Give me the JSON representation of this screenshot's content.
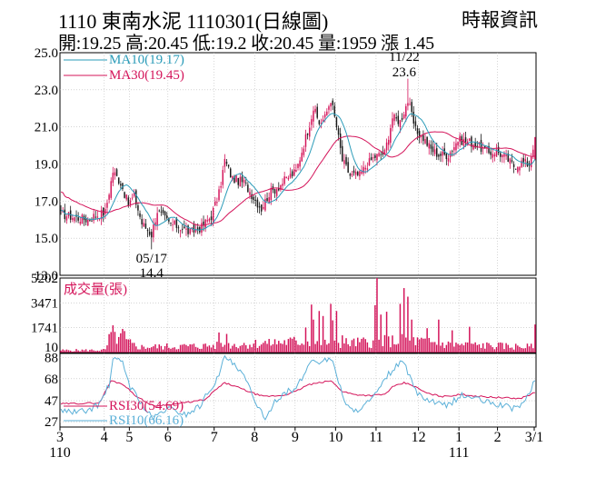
{
  "header": {
    "title": "1110  東南水泥 1110301(日線圖)",
    "source": "時報資訊",
    "quote": "開:19.25 高:20.45 低:19.2 收:20.45 量:1959 漲 1.45"
  },
  "colors": {
    "up": "#d4145a",
    "down": "#1a1a1a",
    "ma10": "#2a9bb8",
    "ma30": "#d4145a",
    "volume": "#d4145a",
    "rsi30": "#d4145a",
    "rsi10": "#5bb0d8",
    "grid": "#bbbbbb"
  },
  "chart_data": [
    {
      "type": "candlestick",
      "panel": "price",
      "ylim": [
        13.0,
        25.0
      ],
      "y_ticks": [
        "25.0",
        "23.0",
        "21.0",
        "19.0",
        "17.0",
        "15.0",
        "13.0"
      ],
      "y_tick_values": [
        25,
        23,
        21,
        19,
        17,
        15,
        13
      ],
      "legend": [
        {
          "label": "MA10(19.17)",
          "color": "#2a9bb8"
        },
        {
          "label": "MA30(19.45)",
          "color": "#d4145a"
        }
      ],
      "annotations": [
        {
          "date_label": "05/17",
          "value_label": "14.4",
          "value": 14.4,
          "day_index": 47
        },
        {
          "date_label": "11/22",
          "value_label": "23.6",
          "value": 23.6,
          "day_index": 180
        }
      ],
      "close_anchors": [
        [
          0,
          16.3
        ],
        [
          8,
          16.1
        ],
        [
          14,
          16.0
        ],
        [
          17,
          16.2
        ],
        [
          23,
          16.4
        ],
        [
          27,
          18.6
        ],
        [
          31,
          18.0
        ],
        [
          35,
          16.8
        ],
        [
          38,
          17.3
        ],
        [
          42,
          15.8
        ],
        [
          47,
          15.2
        ],
        [
          50,
          16.5
        ],
        [
          56,
          15.8
        ],
        [
          62,
          15.6
        ],
        [
          67,
          15.3
        ],
        [
          73,
          15.6
        ],
        [
          78,
          16.2
        ],
        [
          82,
          17.4
        ],
        [
          85,
          19.2
        ],
        [
          89,
          18.2
        ],
        [
          95,
          18.0
        ],
        [
          100,
          17.2
        ],
        [
          104,
          16.6
        ],
        [
          108,
          17.4
        ],
        [
          113,
          17.8
        ],
        [
          118,
          18.3
        ],
        [
          122,
          18.6
        ],
        [
          128,
          20.8
        ],
        [
          131,
          22.0
        ],
        [
          134,
          21.2
        ],
        [
          137,
          21.5
        ],
        [
          140,
          22.5
        ],
        [
          143,
          21.0
        ],
        [
          146,
          19.2
        ],
        [
          150,
          18.4
        ],
        [
          155,
          18.4
        ],
        [
          159,
          19.0
        ],
        [
          163,
          19.4
        ],
        [
          168,
          19.6
        ],
        [
          172,
          21.5
        ],
        [
          176,
          21.3
        ],
        [
          180,
          22.4
        ],
        [
          184,
          20.8
        ],
        [
          188,
          20.4
        ],
        [
          192,
          19.8
        ],
        [
          196,
          19.5
        ],
        [
          201,
          19.5
        ],
        [
          206,
          20.3
        ],
        [
          212,
          20.2
        ],
        [
          216,
          20.0
        ],
        [
          222,
          19.6
        ],
        [
          226,
          19.7
        ],
        [
          231,
          19.3
        ],
        [
          235,
          18.9
        ],
        [
          239,
          19.1
        ],
        [
          243,
          19.0
        ],
        [
          246,
          20.45
        ]
      ],
      "last": {
        "open": 19.25,
        "high": 20.45,
        "low": 19.2,
        "close": 20.45
      }
    },
    {
      "type": "bar",
      "panel": "volume",
      "legend": [
        {
          "label": "成交量(張)",
          "color": "#d4145a"
        }
      ],
      "y_ticks": [
        "5202",
        "3471",
        "1741",
        "10"
      ],
      "y_tick_values": [
        5202,
        3471,
        1741,
        10
      ],
      "ylim": [
        0,
        5202
      ],
      "base_profile": [
        [
          0,
          160
        ],
        [
          23,
          180
        ],
        [
          26,
          1300
        ],
        [
          32,
          900
        ],
        [
          40,
          400
        ],
        [
          80,
          500
        ],
        [
          120,
          800
        ],
        [
          150,
          700
        ],
        [
          180,
          900
        ],
        [
          200,
          600
        ],
        [
          247,
          400
        ]
      ],
      "spikes": [
        {
          "day": 27,
          "value": 1900
        },
        {
          "day": 32,
          "value": 1650
        },
        {
          "day": 33,
          "value": 1500
        },
        {
          "day": 82,
          "value": 1400
        },
        {
          "day": 86,
          "value": 1300
        },
        {
          "day": 108,
          "value": 950
        },
        {
          "day": 127,
          "value": 1750
        },
        {
          "day": 130,
          "value": 3350
        },
        {
          "day": 131,
          "value": 2300
        },
        {
          "day": 134,
          "value": 2900
        },
        {
          "day": 136,
          "value": 2550
        },
        {
          "day": 140,
          "value": 3400
        },
        {
          "day": 141,
          "value": 2250
        },
        {
          "day": 143,
          "value": 2900
        },
        {
          "day": 146,
          "value": 1200
        },
        {
          "day": 157,
          "value": 1050
        },
        {
          "day": 163,
          "value": 3300
        },
        {
          "day": 164,
          "value": 5202
        },
        {
          "day": 166,
          "value": 2650
        },
        {
          "day": 169,
          "value": 2850
        },
        {
          "day": 176,
          "value": 3400
        },
        {
          "day": 178,
          "value": 4500
        },
        {
          "day": 180,
          "value": 3900
        },
        {
          "day": 182,
          "value": 2300
        },
        {
          "day": 190,
          "value": 1700
        },
        {
          "day": 196,
          "value": 2300
        },
        {
          "day": 203,
          "value": 1550
        },
        {
          "day": 212,
          "value": 1800
        },
        {
          "day": 246,
          "value": 1959
        }
      ]
    },
    {
      "type": "line",
      "panel": "rsi",
      "legend": [
        {
          "label": "RSI30(54.69)",
          "color": "#d4145a"
        },
        {
          "label": "RSI10(66.16)",
          "color": "#5bb0d8"
        }
      ],
      "y_ticks": [
        "88",
        "68",
        "47",
        "27"
      ],
      "y_tick_values": [
        88,
        68,
        47,
        27
      ],
      "ylim": [
        22,
        92
      ],
      "series": [
        {
          "name": "RSI30",
          "anchors": [
            [
              0,
              44
            ],
            [
              20,
              45
            ],
            [
              26,
              66
            ],
            [
              32,
              63
            ],
            [
              40,
              50
            ],
            [
              48,
              42
            ],
            [
              60,
              44
            ],
            [
              75,
              48
            ],
            [
              80,
              57
            ],
            [
              85,
              64
            ],
            [
              90,
              61
            ],
            [
              100,
              54
            ],
            [
              105,
              51
            ],
            [
              115,
              52
            ],
            [
              122,
              56
            ],
            [
              128,
              62
            ],
            [
              134,
              64
            ],
            [
              140,
              66
            ],
            [
              146,
              56
            ],
            [
              152,
              53
            ],
            [
              160,
              52
            ],
            [
              168,
              53
            ],
            [
              172,
              60
            ],
            [
              178,
              64
            ],
            [
              182,
              62
            ],
            [
              190,
              54
            ],
            [
              198,
              51
            ],
            [
              208,
              53
            ],
            [
              218,
              51
            ],
            [
              228,
              50
            ],
            [
              238,
              49
            ],
            [
              246,
              54.69
            ]
          ]
        },
        {
          "name": "RSI10",
          "anchors": [
            [
              0,
              38
            ],
            [
              8,
              36
            ],
            [
              14,
              38
            ],
            [
              20,
              44
            ],
            [
              25,
              62
            ],
            [
              27,
              86
            ],
            [
              32,
              84
            ],
            [
              36,
              60
            ],
            [
              40,
              50
            ],
            [
              44,
              38
            ],
            [
              48,
              30
            ],
            [
              55,
              40
            ],
            [
              65,
              34
            ],
            [
              72,
              42
            ],
            [
              78,
              60
            ],
            [
              82,
              70
            ],
            [
              85,
              90
            ],
            [
              89,
              82
            ],
            [
              95,
              70
            ],
            [
              100,
              50
            ],
            [
              103,
              40
            ],
            [
              106,
              26
            ],
            [
              110,
              45
            ],
            [
              116,
              55
            ],
            [
              122,
              58
            ],
            [
              127,
              75
            ],
            [
              130,
              86
            ],
            [
              135,
              84
            ],
            [
              140,
              88
            ],
            [
              144,
              66
            ],
            [
              148,
              43
            ],
            [
              152,
              36
            ],
            [
              156,
              42
            ],
            [
              160,
              46
            ],
            [
              165,
              57
            ],
            [
              170,
              72
            ],
            [
              174,
              80
            ],
            [
              178,
              84
            ],
            [
              182,
              64
            ],
            [
              186,
              52
            ],
            [
              192,
              46
            ],
            [
              200,
              42
            ],
            [
              208,
              52
            ],
            [
              214,
              50
            ],
            [
              220,
              46
            ],
            [
              228,
              43
            ],
            [
              234,
              40
            ],
            [
              240,
              44
            ],
            [
              246,
              66.16
            ]
          ]
        }
      ]
    }
  ],
  "x_axis": {
    "tick_labels": [
      "3",
      "4",
      "5",
      "6",
      "7",
      "8",
      "9",
      "10",
      "11",
      "12",
      "1",
      "2",
      "3/1"
    ],
    "tick_days": [
      0,
      23,
      36,
      56,
      80,
      101,
      122,
      143,
      164,
      186,
      207,
      227,
      246
    ],
    "year_labels": [
      {
        "label": "110",
        "day": 0
      },
      {
        "label": "111",
        "day": 207
      }
    ]
  }
}
